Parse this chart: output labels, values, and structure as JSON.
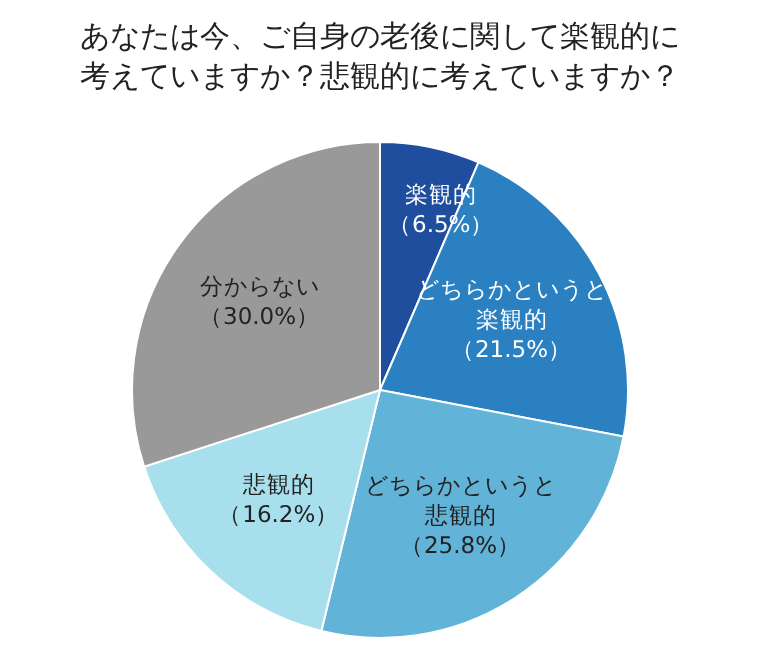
{
  "chart_data": {
    "type": "pie",
    "title": "あなたは今、ご自身の老後に関して楽観的に考えていますか？悲観的に考えていますか？",
    "categories": [
      "楽観的",
      "どちらかというと楽観的",
      "どちらかというと悲観的",
      "悲観的",
      "分からない"
    ],
    "values": [
      6.5,
      21.5,
      25.8,
      16.2,
      30.0
    ],
    "value_labels": [
      "（6.5%）",
      "（21.5%）",
      "（25.8%）",
      "（16.2%）",
      "（30.0%）"
    ],
    "colors": [
      "#1f4e9e",
      "#2a80c0",
      "#62b3d8",
      "#a8dfec",
      "#999999"
    ]
  }
}
